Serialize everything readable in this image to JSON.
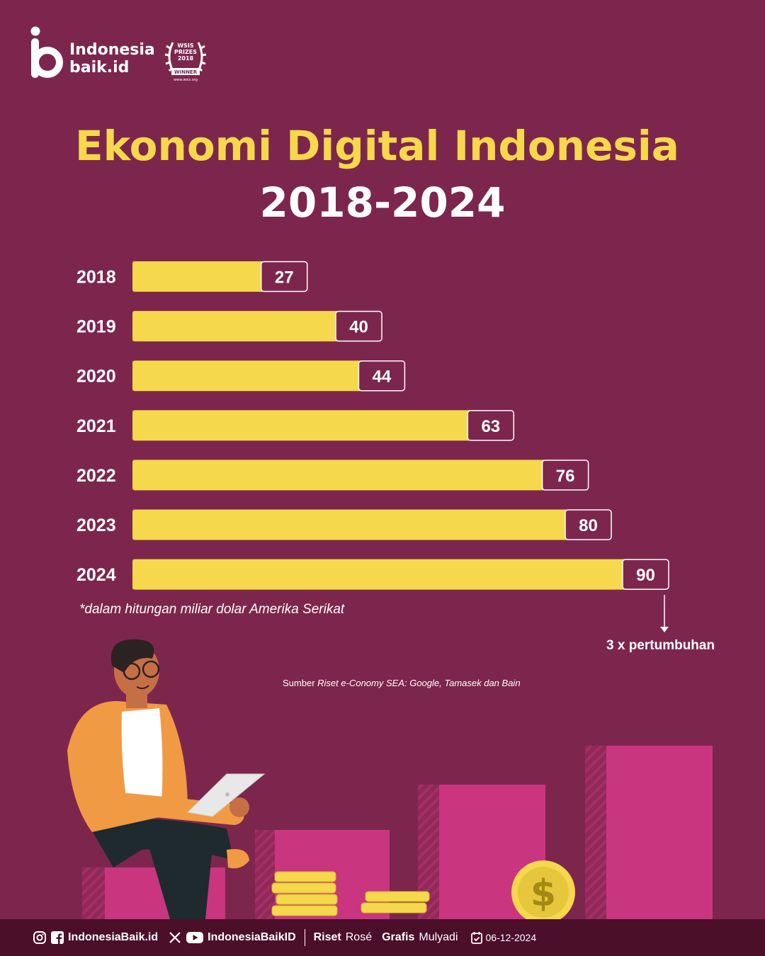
{
  "brand": {
    "name_line1": "Indonesia",
    "name_line2": "baik.id"
  },
  "award": {
    "line1": "WSIS",
    "line2": "PRIZES",
    "line3": "2018",
    "line4": "WINNER",
    "url": "www.wsis.org"
  },
  "title": "Ekonomi Digital Indonesia",
  "subtitle": "2018-2024",
  "chart_data": {
    "type": "bar",
    "orientation": "horizontal",
    "categories": [
      "2018",
      "2019",
      "2020",
      "2021",
      "2022",
      "2023",
      "2024"
    ],
    "values": [
      27,
      40,
      44,
      63,
      76,
      80,
      90
    ],
    "title": "Ekonomi Digital Indonesia",
    "subtitle": "2018-2024",
    "note": "*dalam hitungan miliar dolar Amerika Serikat",
    "bar_color": "#f5d84b",
    "data_labels": true,
    "grid": false
  },
  "note": "*dalam hitungan miliar dolar Amerika Serikat",
  "growth_label": "3 x pertumbuhan",
  "source": {
    "prefix": "Sumber",
    "text": "Riset e-Conomy SEA: Google, Tamasek dan Bain"
  },
  "footer": {
    "social_handle": "IndonesiaBaik.id",
    "video_handle": "IndonesiaBaikID",
    "riset_label": "Riset",
    "riset_name": "Rosé",
    "grafis_label": "Grafis",
    "grafis_name": "Mulyadi",
    "date": "06-12-2024"
  },
  "colors": {
    "background": "#7d264d",
    "accent": "#f5d84b",
    "footer": "#4b0f2a",
    "illustration_bars": "#c9357f"
  }
}
